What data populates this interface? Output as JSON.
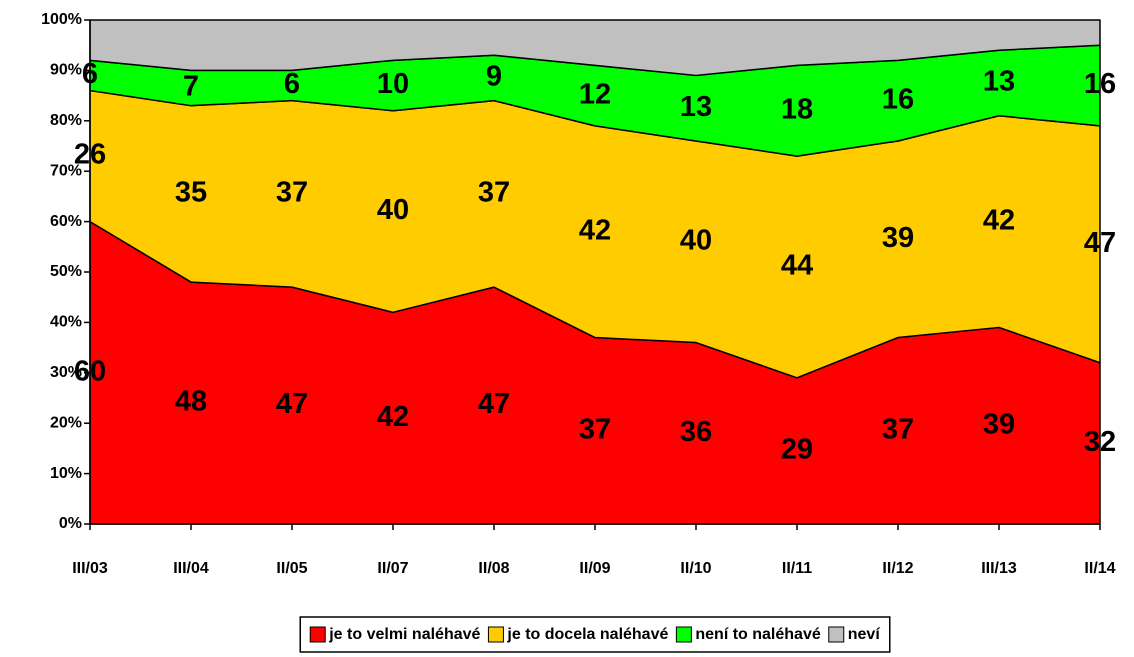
{
  "chart_data": {
    "type": "stacked_area",
    "categories": [
      "III/03",
      "III/04",
      "II/05",
      "II/07",
      "II/08",
      "II/09",
      "II/10",
      "II/11",
      "II/12",
      "III/13",
      "II/14"
    ],
    "series": [
      {
        "name": "je to velmi naléhavé",
        "color": "#ff0000",
        "values": [
          60,
          48,
          47,
          42,
          47,
          37,
          36,
          29,
          37,
          39,
          32
        ]
      },
      {
        "name": "je to docela naléhavé",
        "color": "#ffcc00",
        "values": [
          26,
          35,
          37,
          40,
          37,
          42,
          40,
          44,
          39,
          42,
          47
        ]
      },
      {
        "name": "není to naléhavé",
        "color": "#00ff00",
        "values": [
          6,
          7,
          6,
          10,
          9,
          12,
          13,
          18,
          16,
          13,
          16
        ]
      },
      {
        "name": "neví",
        "color": "#c0c0c0",
        "values": [
          8,
          10,
          10,
          8,
          7,
          9,
          11,
          9,
          8,
          6,
          5
        ]
      }
    ],
    "data_labels": [
      true,
      true,
      true,
      false
    ],
    "ylim": [
      0,
      100
    ],
    "yticks": [
      {
        "value": 0,
        "label": "0%"
      },
      {
        "value": 10,
        "label": "10%"
      },
      {
        "value": 20,
        "label": "20%"
      },
      {
        "value": 30,
        "label": "30%"
      },
      {
        "value": 40,
        "label": "40%"
      },
      {
        "value": 50,
        "label": "50%"
      },
      {
        "value": 60,
        "label": "60%"
      },
      {
        "value": 70,
        "label": "70%"
      },
      {
        "value": 80,
        "label": "80%"
      },
      {
        "value": 90,
        "label": "90%"
      },
      {
        "value": 100,
        "label": "100%"
      }
    ],
    "legend": "bottom"
  }
}
